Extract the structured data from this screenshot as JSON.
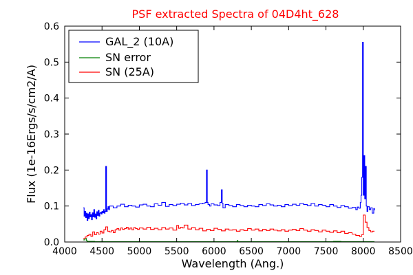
{
  "chart_data": {
    "type": "line",
    "title": "PSF extracted Spectra of 04D4ht_628",
    "xlabel": "Wavelength (Ang.)",
    "ylabel": "Flux (1e-16Ergs/s/cm2/A)",
    "xlim": [
      4000,
      8500
    ],
    "ylim": [
      0.0,
      0.6
    ],
    "xticks": [
      "4000",
      "4500",
      "5000",
      "5500",
      "6000",
      "6500",
      "7000",
      "7500",
      "8000",
      "8500"
    ],
    "yticks": [
      "0.0",
      "0.1",
      "0.2",
      "0.3",
      "0.4",
      "0.5",
      "0.6"
    ],
    "grid": false,
    "legend_position": "top-left",
    "colors": {
      "title": "#ff0000",
      "gal": "#0000ff",
      "err": "#008000",
      "sn": "#ff0000"
    },
    "series": [
      {
        "name": "GAL_2 (10A)",
        "step": true,
        "x": [
          4250,
          4260,
          4270,
          4280,
          4290,
          4300,
          4310,
          4320,
          4330,
          4340,
          4350,
          4360,
          4370,
          4380,
          4390,
          4400,
          4410,
          4420,
          4430,
          4440,
          4450,
          4460,
          4470,
          4480,
          4490,
          4500,
          4510,
          4520,
          4530,
          4540,
          4550,
          4560,
          4570,
          4580,
          4590,
          4600,
          4650,
          4700,
          4750,
          4800,
          4850,
          4900,
          4950,
          5000,
          5050,
          5100,
          5150,
          5200,
          5250,
          5300,
          5350,
          5400,
          5450,
          5500,
          5550,
          5600,
          5650,
          5700,
          5750,
          5800,
          5850,
          5880,
          5900,
          5910,
          5920,
          5940,
          5960,
          6000,
          6050,
          6080,
          6100,
          6110,
          6120,
          6150,
          6200,
          6250,
          6300,
          6350,
          6400,
          6450,
          6500,
          6550,
          6600,
          6650,
          6700,
          6750,
          6800,
          6850,
          6900,
          6950,
          7000,
          7050,
          7100,
          7150,
          7200,
          7250,
          7300,
          7350,
          7400,
          7450,
          7500,
          7550,
          7600,
          7650,
          7700,
          7750,
          7800,
          7850,
          7900,
          7920,
          7940,
          7960,
          7970,
          7980,
          7990,
          8000,
          8010,
          8020,
          8030,
          8040,
          8050,
          8060,
          8080,
          8100,
          8120,
          8140,
          8150
        ],
        "y": [
          0.095,
          0.072,
          0.085,
          0.068,
          0.08,
          0.06,
          0.078,
          0.065,
          0.083,
          0.07,
          0.076,
          0.062,
          0.081,
          0.07,
          0.09,
          0.069,
          0.078,
          0.064,
          0.084,
          0.074,
          0.088,
          0.072,
          0.08,
          0.083,
          0.078,
          0.085,
          0.081,
          0.09,
          0.08,
          0.085,
          0.21,
          0.085,
          0.092,
          0.098,
          0.09,
          0.1,
          0.095,
          0.1,
          0.105,
          0.098,
          0.102,
          0.1,
          0.097,
          0.103,
          0.105,
          0.1,
          0.098,
          0.106,
          0.102,
          0.11,
          0.099,
          0.104,
          0.101,
          0.105,
          0.108,
          0.103,
          0.107,
          0.101,
          0.104,
          0.106,
          0.108,
          0.11,
          0.2,
          0.11,
          0.104,
          0.1,
          0.106,
          0.103,
          0.101,
          0.11,
          0.145,
          0.108,
          0.095,
          0.104,
          0.101,
          0.098,
          0.104,
          0.101,
          0.098,
          0.102,
          0.1,
          0.098,
          0.104,
          0.101,
          0.106,
          0.103,
          0.1,
          0.102,
          0.098,
          0.104,
          0.101,
          0.105,
          0.102,
          0.107,
          0.104,
          0.101,
          0.107,
          0.1,
          0.104,
          0.102,
          0.098,
          0.104,
          0.1,
          0.096,
          0.101,
          0.098,
          0.094,
          0.096,
          0.09,
          0.097,
          0.094,
          0.11,
          0.13,
          0.18,
          0.555,
          0.13,
          0.24,
          0.12,
          0.21,
          0.1,
          0.085,
          0.098,
          0.09,
          0.095,
          0.08,
          0.093,
          0.088
        ]
      },
      {
        "name": "SN error",
        "step": true,
        "x": [
          4250,
          4270,
          4290,
          4300,
          4400,
          4600,
          5000,
          5500,
          6000,
          6300,
          6310,
          6320,
          6400,
          7000,
          7500,
          7600,
          7650,
          7700,
          8000,
          8100,
          8150
        ],
        "y": [
          0.006,
          0.01,
          0.004,
          0.002,
          0.001,
          0.001,
          0.001,
          0.001,
          0.001,
          0.001,
          0.004,
          0.001,
          0.001,
          0.001,
          0.001,
          0.002,
          0.002,
          0.001,
          0.001,
          0.001,
          0.001
        ]
      },
      {
        "name": "SN (25A)",
        "step": true,
        "x": [
          4250,
          4275,
          4300,
          4325,
          4350,
          4375,
          4400,
          4425,
          4450,
          4475,
          4500,
          4525,
          4550,
          4575,
          4600,
          4625,
          4650,
          4675,
          4700,
          4725,
          4750,
          4775,
          4800,
          4825,
          4850,
          4875,
          4900,
          4925,
          4950,
          4975,
          5000,
          5050,
          5100,
          5150,
          5200,
          5250,
          5300,
          5350,
          5400,
          5450,
          5500,
          5525,
          5550,
          5575,
          5600,
          5650,
          5700,
          5750,
          5800,
          5850,
          5900,
          5950,
          6000,
          6050,
          6100,
          6150,
          6200,
          6250,
          6300,
          6350,
          6400,
          6450,
          6500,
          6550,
          6600,
          6650,
          6700,
          6750,
          6800,
          6850,
          6900,
          6950,
          7000,
          7050,
          7100,
          7150,
          7200,
          7250,
          7300,
          7350,
          7400,
          7450,
          7500,
          7550,
          7600,
          7650,
          7700,
          7750,
          7800,
          7850,
          7900,
          7950,
          7975,
          8000,
          8025,
          8050,
          8075,
          8100,
          8125,
          8150
        ],
        "y": [
          0.01,
          0.014,
          0.018,
          0.022,
          0.016,
          0.028,
          0.02,
          0.026,
          0.022,
          0.03,
          0.025,
          0.034,
          0.042,
          0.03,
          0.028,
          0.032,
          0.026,
          0.034,
          0.037,
          0.033,
          0.039,
          0.035,
          0.037,
          0.041,
          0.036,
          0.039,
          0.034,
          0.04,
          0.037,
          0.035,
          0.039,
          0.036,
          0.041,
          0.035,
          0.038,
          0.034,
          0.04,
          0.036,
          0.039,
          0.033,
          0.046,
          0.038,
          0.041,
          0.039,
          0.047,
          0.036,
          0.04,
          0.034,
          0.038,
          0.031,
          0.035,
          0.032,
          0.038,
          0.035,
          0.031,
          0.036,
          0.033,
          0.034,
          0.03,
          0.034,
          0.032,
          0.037,
          0.033,
          0.036,
          0.031,
          0.035,
          0.032,
          0.036,
          0.033,
          0.031,
          0.034,
          0.03,
          0.033,
          0.035,
          0.032,
          0.037,
          0.033,
          0.03,
          0.034,
          0.032,
          0.028,
          0.033,
          0.03,
          0.027,
          0.031,
          0.026,
          0.03,
          0.024,
          0.026,
          0.022,
          0.018,
          0.015,
          0.02,
          0.075,
          0.055,
          0.04,
          0.032,
          0.028,
          0.03,
          0.03
        ]
      }
    ]
  }
}
